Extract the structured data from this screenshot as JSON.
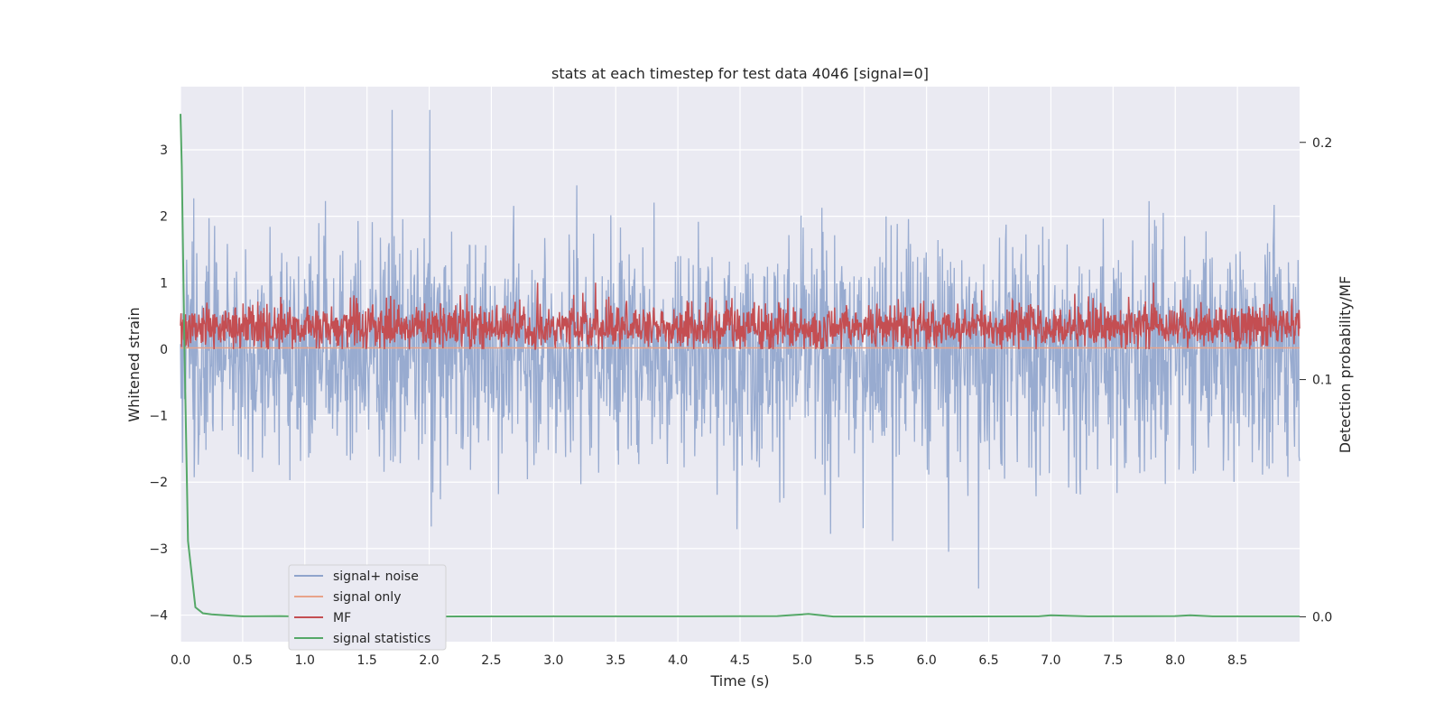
{
  "chart_data": {
    "type": "line",
    "title": "stats at each timestep for test data 4046 [signal=0]",
    "xlabel": "Time (s)",
    "ylabel": "Whitened strain",
    "y2label": "Detection probability/MF",
    "xlim": [
      0,
      9
    ],
    "ylim": [
      -4.4,
      3.95
    ],
    "y2lim": [
      -0.0105,
      0.2235
    ],
    "xticks": [
      0.0,
      0.5,
      1.0,
      1.5,
      2.0,
      2.5,
      3.0,
      3.5,
      4.0,
      4.5,
      5.0,
      5.5,
      6.0,
      6.5,
      7.0,
      7.5,
      8.0,
      8.5
    ],
    "yticks": [
      -4,
      -3,
      -2,
      -1,
      0,
      1,
      2,
      3
    ],
    "y2ticks": [
      0.0,
      0.1,
      0.2
    ],
    "grid": true,
    "legend_position": "lower-left",
    "series": [
      {
        "name": "signal+ noise",
        "axis": "left",
        "color": "#8fa4cc"
      },
      {
        "name": "signal only",
        "axis": "left",
        "color": "#e8a38a"
      },
      {
        "name": "MF",
        "axis": "left",
        "color": "#c44e52"
      },
      {
        "name": "signal statistics",
        "axis": "right",
        "color": "#55a868",
        "x": [
          0.0,
          0.01,
          0.03,
          0.06,
          0.12,
          0.18,
          0.25,
          0.4,
          0.5,
          0.8,
          1.0,
          2.0,
          3.0,
          4.0,
          4.8,
          4.95,
          5.05,
          5.12,
          5.25,
          6.0,
          6.9,
          7.0,
          7.3,
          8.0,
          8.12,
          8.3,
          9.0
        ],
        "values": [
          0.212,
          0.19,
          0.12,
          0.032,
          0.004,
          0.0015,
          0.001,
          0.0005,
          0.0002,
          0.0003,
          0.0001,
          0.0001,
          0.0002,
          0.0002,
          0.0003,
          0.0008,
          0.0012,
          0.0008,
          0.0001,
          0.0001,
          0.0002,
          0.0006,
          0.0002,
          0.0003,
          0.0006,
          0.0002,
          0.0002
        ]
      }
    ]
  }
}
